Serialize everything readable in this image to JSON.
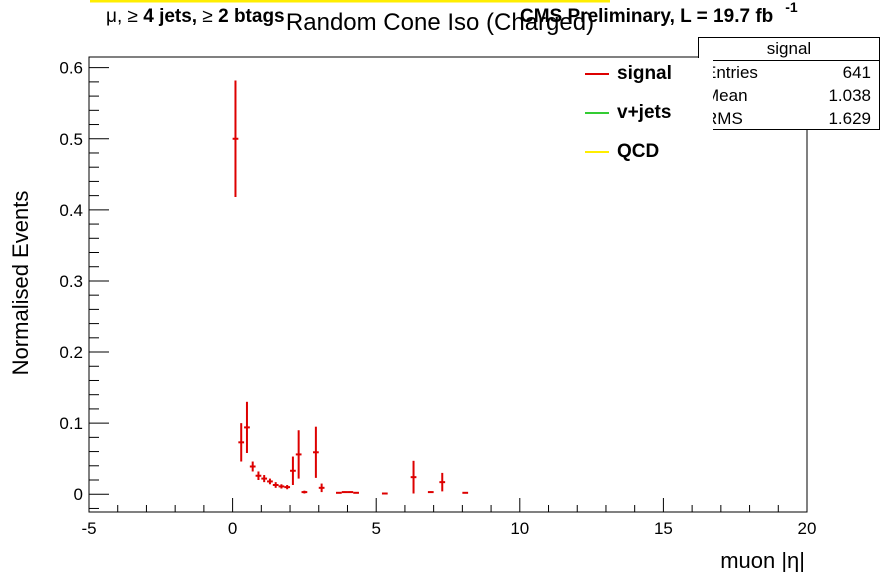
{
  "header": {
    "channel_prefix": "μ, ≥ ",
    "channel_jets": "4 jets, ",
    "channel_ge": "≥ ",
    "channel_btags": "2 btags",
    "cms_label": "CMS Preliminary, L = 19.7 fb",
    "cms_superscript": "-1"
  },
  "legend": {
    "items": [
      {
        "label": "signal",
        "color": "#dd0000"
      },
      {
        "label": "v+jets",
        "color": "#33cc33"
      },
      {
        "label": "QCD",
        "color": "#ffee00"
      }
    ]
  },
  "stats": {
    "title": "signal",
    "rows": [
      {
        "key": "Entries",
        "value": "641"
      },
      {
        "key": "Mean",
        "value": "1.038"
      },
      {
        "key": "RMS",
        "value": "1.629"
      }
    ]
  },
  "chart_data": {
    "type": "scatter",
    "title": "Random Cone Iso (Charged)",
    "xlabel": "muon |η|",
    "ylabel": "Normalised Events",
    "xlim": [
      -5,
      20
    ],
    "ylim": [
      -0.025,
      0.615
    ],
    "xticks": [
      -5,
      0,
      5,
      10,
      15,
      20
    ],
    "yticks": [
      0,
      0.1,
      0.2,
      0.3,
      0.4,
      0.5,
      0.6
    ],
    "ytick_labels": [
      "0",
      "0.1",
      "0.2",
      "0.3",
      "0.4",
      "0.5",
      "0.6"
    ],
    "bin_width": 0.2,
    "series": [
      {
        "name": "signal",
        "color": "#dd0000",
        "points": [
          {
            "x": 0.1,
            "y": 0.5,
            "err": 0.082
          },
          {
            "x": 0.3,
            "y": 0.073,
            "err": 0.027
          },
          {
            "x": 0.5,
            "y": 0.094,
            "err": 0.036
          },
          {
            "x": 0.7,
            "y": 0.039,
            "err": 0.007
          },
          {
            "x": 0.9,
            "y": 0.026,
            "err": 0.006
          },
          {
            "x": 1.1,
            "y": 0.022,
            "err": 0.005
          },
          {
            "x": 1.3,
            "y": 0.018,
            "err": 0.004
          },
          {
            "x": 1.5,
            "y": 0.013,
            "err": 0.004
          },
          {
            "x": 1.7,
            "y": 0.011,
            "err": 0.003
          },
          {
            "x": 1.9,
            "y": 0.01,
            "err": 0.003
          },
          {
            "x": 2.1,
            "y": 0.033,
            "err": 0.02
          },
          {
            "x": 2.3,
            "y": 0.056,
            "err": 0.034
          },
          {
            "x": 2.5,
            "y": 0.003,
            "err": 0.002
          },
          {
            "x": 2.9,
            "y": 0.059,
            "err": 0.036
          },
          {
            "x": 3.1,
            "y": 0.009,
            "err": 0.006
          },
          {
            "x": 3.7,
            "y": 0.002,
            "err": 0.001
          },
          {
            "x": 3.9,
            "y": 0.003,
            "err": 0.001
          },
          {
            "x": 4.1,
            "y": 0.003,
            "err": 0.001
          },
          {
            "x": 4.3,
            "y": 0.002,
            "err": 0.001
          },
          {
            "x": 5.3,
            "y": 0.001,
            "err": 0.001
          },
          {
            "x": 6.3,
            "y": 0.024,
            "err": 0.023
          },
          {
            "x": 6.9,
            "y": 0.003,
            "err": 0.001
          },
          {
            "x": 7.3,
            "y": 0.017,
            "err": 0.013
          },
          {
            "x": 8.1,
            "y": 0.002,
            "err": 0.001
          }
        ]
      }
    ],
    "legend_position": "top-right"
  }
}
